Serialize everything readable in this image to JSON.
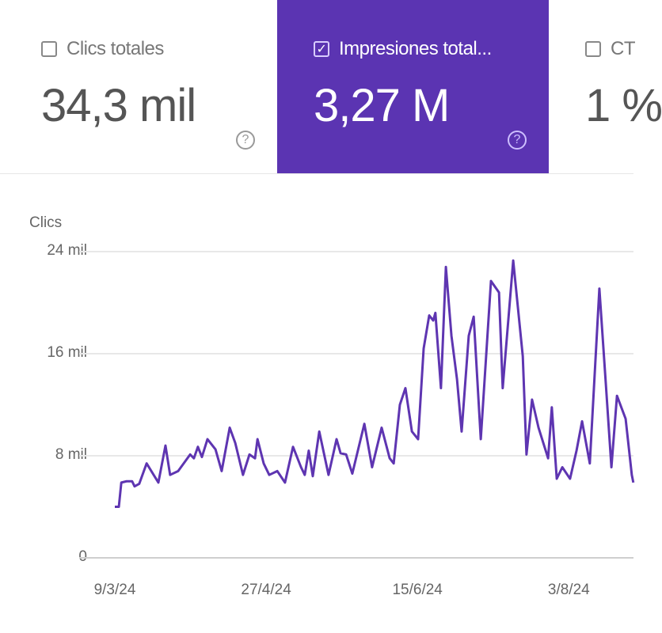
{
  "tiles": [
    {
      "label": "Clics totales",
      "value": "34,3 mil",
      "checked": false
    },
    {
      "label": "Impresiones total...",
      "value": "3,27 M",
      "checked": true
    },
    {
      "label": "CT",
      "value": "1 %",
      "checked": false
    }
  ],
  "help_glyph": "?",
  "check_glyph": "✓",
  "colors": {
    "accent": "#5b34b2",
    "line": "#5e35b1",
    "grid": "#e8e8e8"
  },
  "chart_data": {
    "type": "line",
    "ylabel": "Clics",
    "ylim": [
      0,
      24000
    ],
    "yticks": [
      "24 mil",
      "16 mil",
      "8 mil",
      "0"
    ],
    "ytick_values": [
      24,
      16,
      8,
      0
    ],
    "xticks": [
      "9/3/24",
      "27/4/24",
      "15/6/24",
      "3/8/24"
    ],
    "xtick_days": [
      0,
      49,
      98,
      147
    ],
    "x_unit": "days since 9/3/24",
    "y_unit": "thousand clicks",
    "grid": true,
    "series": [
      {
        "name": "Clics",
        "points": [
          [
            0,
            4.0
          ],
          [
            1.3,
            4.0
          ],
          [
            2.1,
            5.9
          ],
          [
            3.8,
            6.0
          ],
          [
            5.6,
            6.0
          ],
          [
            6.4,
            5.6
          ],
          [
            7.9,
            5.8
          ],
          [
            10.3,
            7.4
          ],
          [
            14.1,
            5.9
          ],
          [
            16.4,
            8.8
          ],
          [
            17.9,
            6.5
          ],
          [
            20.5,
            6.8
          ],
          [
            24.4,
            8.1
          ],
          [
            25.6,
            7.8
          ],
          [
            26.9,
            8.7
          ],
          [
            28.2,
            7.9
          ],
          [
            30,
            9.3
          ],
          [
            32.6,
            8.5
          ],
          [
            34.6,
            6.8
          ],
          [
            37.2,
            10.2
          ],
          [
            39,
            9.0
          ],
          [
            41.5,
            6.5
          ],
          [
            43.6,
            8.1
          ],
          [
            45.4,
            7.8
          ],
          [
            46.2,
            9.3
          ],
          [
            48.2,
            7.4
          ],
          [
            50,
            6.5
          ],
          [
            52.6,
            6.8
          ],
          [
            55.1,
            5.9
          ],
          [
            57.7,
            8.7
          ],
          [
            60.3,
            7.1
          ],
          [
            61.5,
            6.5
          ],
          [
            62.8,
            8.4
          ],
          [
            64.1,
            6.4
          ],
          [
            66.2,
            9.9
          ],
          [
            69.2,
            6.5
          ],
          [
            71.8,
            9.3
          ],
          [
            73.1,
            8.2
          ],
          [
            74.9,
            8.1
          ],
          [
            76.9,
            6.6
          ],
          [
            80.8,
            10.5
          ],
          [
            83.3,
            7.1
          ],
          [
            86.4,
            10.2
          ],
          [
            89,
            7.8
          ],
          [
            90.3,
            7.4
          ],
          [
            92.3,
            12.0
          ],
          [
            94.1,
            13.3
          ],
          [
            96.2,
            9.9
          ],
          [
            98.2,
            9.3
          ],
          [
            100,
            16.4
          ],
          [
            101.8,
            19.0
          ],
          [
            103.1,
            18.6
          ],
          [
            103.8,
            19.2
          ],
          [
            105.6,
            13.3
          ],
          [
            107.2,
            22.8
          ],
          [
            109,
            17.4
          ],
          [
            110.8,
            14.0
          ],
          [
            112.3,
            9.9
          ],
          [
            114.6,
            17.4
          ],
          [
            116.2,
            18.9
          ],
          [
            118.5,
            9.3
          ],
          [
            121.8,
            21.7
          ],
          [
            124.4,
            20.8
          ],
          [
            125.6,
            13.3
          ],
          [
            129,
            23.3
          ],
          [
            132.1,
            15.8
          ],
          [
            133.3,
            8.1
          ],
          [
            135.1,
            12.4
          ],
          [
            137.2,
            10.2
          ],
          [
            140.3,
            7.8
          ],
          [
            141.5,
            11.8
          ],
          [
            143.1,
            6.2
          ],
          [
            144.9,
            7.1
          ],
          [
            147.4,
            6.2
          ],
          [
            149.5,
            8.4
          ],
          [
            151.3,
            10.7
          ],
          [
            153.8,
            7.4
          ],
          [
            156.9,
            21.1
          ],
          [
            159,
            13.6
          ],
          [
            160.8,
            7.1
          ],
          [
            162.6,
            12.7
          ],
          [
            165.4,
            10.9
          ],
          [
            167.4,
            6.5
          ],
          [
            167.9,
            5.9
          ]
        ]
      }
    ]
  }
}
